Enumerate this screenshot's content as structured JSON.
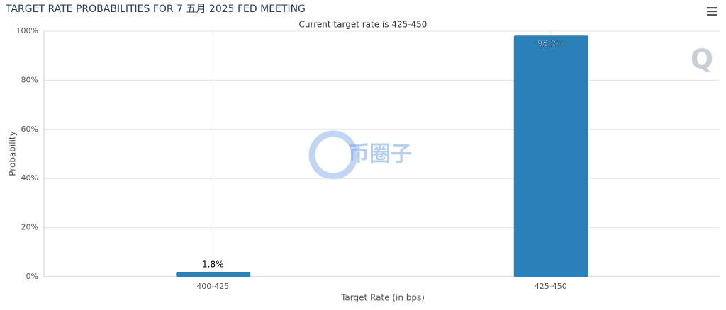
{
  "chart_data": {
    "type": "bar",
    "title": "TARGET RATE PROBABILITIES FOR 7 五月 2025 FED MEETING",
    "subtitle": "Current target rate is 425-450",
    "x_label": "Target Rate (in bps)",
    "y_label": "Probability",
    "watermark": "币圈子",
    "logo": "Q",
    "categories": [
      "400-425",
      "425-450"
    ],
    "values": [
      1.8,
      98.2
    ],
    "value_labels": [
      "1.8%",
      "98.2%"
    ],
    "color": "#2b80b9",
    "ylim": [
      0,
      100
    ],
    "yticks": [
      {
        "value": 0,
        "label": "0%"
      },
      {
        "value": 20,
        "label": "20%"
      },
      {
        "value": 40,
        "label": "40%"
      },
      {
        "value": 60,
        "label": "60%"
      },
      {
        "value": 80,
        "label": "80%"
      },
      {
        "value": 100,
        "label": "100%"
      }
    ],
    "grid": true
  }
}
